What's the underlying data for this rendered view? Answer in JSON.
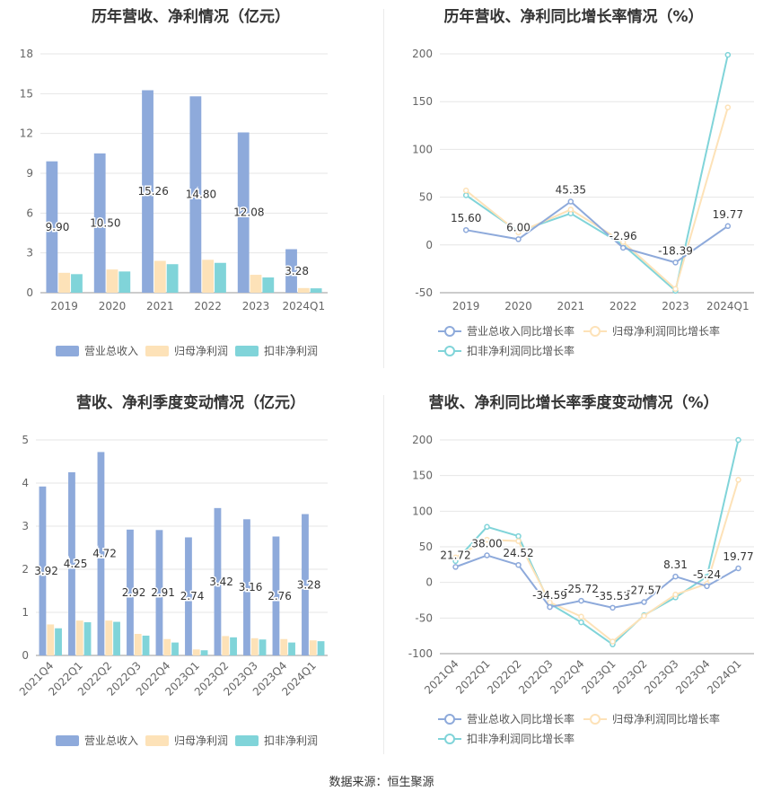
{
  "footer": "数据来源：恒生聚源",
  "colors": {
    "revenue": "#8eaadb",
    "parent": "#fde2b8",
    "deducted": "#80d4d9",
    "grid": "#e6e6e6",
    "axis": "#999999"
  },
  "chart_data": [
    {
      "type": "bar",
      "title": "历年营收、净利情况（亿元）",
      "categories": [
        "2019",
        "2020",
        "2021",
        "2022",
        "2023",
        "2024Q1"
      ],
      "ylim": [
        0,
        18
      ],
      "yticks": [
        "0",
        "3",
        "6",
        "9",
        "12",
        "15",
        "18"
      ],
      "series": [
        {
          "name": "营业总收入",
          "values": [
            9.9,
            10.5,
            15.26,
            14.8,
            12.08,
            3.28
          ],
          "labels": [
            "9.90",
            "10.50",
            "15.26",
            "14.80",
            "12.08",
            "3.28"
          ]
        },
        {
          "name": "归母净利润",
          "values": [
            1.5,
            1.75,
            2.4,
            2.48,
            1.35,
            0.35
          ]
        },
        {
          "name": "扣非净利润",
          "values": [
            1.4,
            1.6,
            2.15,
            2.25,
            1.15,
            0.33
          ]
        }
      ],
      "legend": "bottom"
    },
    {
      "type": "line",
      "title": "历年营收、净利同比增长率情况（%）",
      "categories": [
        "2019",
        "2020",
        "2021",
        "2022",
        "2023",
        "2024Q1"
      ],
      "ylim": [
        -50,
        200
      ],
      "yticks": [
        "-50",
        "0",
        "50",
        "100",
        "150",
        "200"
      ],
      "series": [
        {
          "name": "营业总收入同比增长率",
          "values": [
            15.6,
            6.0,
            45.35,
            -2.96,
            -18.39,
            19.77
          ],
          "labels": [
            "15.60",
            "6.00",
            "45.35",
            "-2.96",
            "-18.39",
            "19.77"
          ]
        },
        {
          "name": "归母净利润同比增长率",
          "values": [
            57,
            13,
            37,
            3,
            -46,
            144
          ]
        },
        {
          "name": "扣非净利润同比增长率",
          "values": [
            52,
            14,
            33,
            0,
            -48,
            199
          ]
        }
      ],
      "legend": "bottom"
    },
    {
      "type": "bar",
      "title": "营收、净利季度变动情况（亿元）",
      "categories": [
        "2021Q4",
        "2022Q1",
        "2022Q2",
        "2022Q3",
        "2022Q4",
        "2023Q1",
        "2023Q2",
        "2023Q3",
        "2023Q4",
        "2024Q1"
      ],
      "ylim": [
        0,
        5
      ],
      "yticks": [
        "0",
        "1",
        "2",
        "3",
        "4",
        "5"
      ],
      "series": [
        {
          "name": "营业总收入",
          "values": [
            3.92,
            4.25,
            4.72,
            2.92,
            2.91,
            2.74,
            3.42,
            3.16,
            2.76,
            3.28
          ],
          "labels": [
            "3.92",
            "4.25",
            "4.72",
            "2.92",
            "2.91",
            "2.74",
            "3.42",
            "3.16",
            "2.76",
            "3.28"
          ]
        },
        {
          "name": "归母净利润",
          "values": [
            0.72,
            0.81,
            0.81,
            0.5,
            0.38,
            0.14,
            0.45,
            0.4,
            0.38,
            0.35
          ]
        },
        {
          "name": "扣非净利润",
          "values": [
            0.63,
            0.77,
            0.78,
            0.46,
            0.3,
            0.12,
            0.42,
            0.37,
            0.3,
            0.33
          ]
        }
      ],
      "legend": "bottom"
    },
    {
      "type": "line",
      "title": "营收、净利同比增长率季度变动情况（%）",
      "categories": [
        "2021Q4",
        "2022Q1",
        "2022Q2",
        "2022Q3",
        "2022Q4",
        "2023Q1",
        "2023Q2",
        "2023Q3",
        "2023Q4",
        "2024Q1"
      ],
      "ylim": [
        -100,
        200
      ],
      "yticks": [
        "-100",
        "-50",
        "0",
        "50",
        "100",
        "150",
        "200"
      ],
      "series": [
        {
          "name": "营业总收入同比增长率",
          "values": [
            21.72,
            38.0,
            24.52,
            -34.59,
            -25.72,
            -35.53,
            -27.57,
            8.31,
            -5.24,
            19.77
          ],
          "labels": [
            "21.72",
            "38.00",
            "24.52",
            "-34.59",
            "-25.72",
            "-35.53",
            "-27.57",
            "8.31",
            "-5.24",
            "19.77"
          ]
        },
        {
          "name": "归母净利润同比增长率",
          "values": [
            35,
            60,
            58,
            -28,
            -48,
            -83,
            -47,
            -17,
            -2,
            144
          ]
        },
        {
          "name": "扣非净利润同比增长率",
          "values": [
            30,
            78,
            65,
            -30,
            -56,
            -87,
            -46,
            -21,
            8,
            200
          ]
        }
      ],
      "legend": "bottom"
    }
  ]
}
